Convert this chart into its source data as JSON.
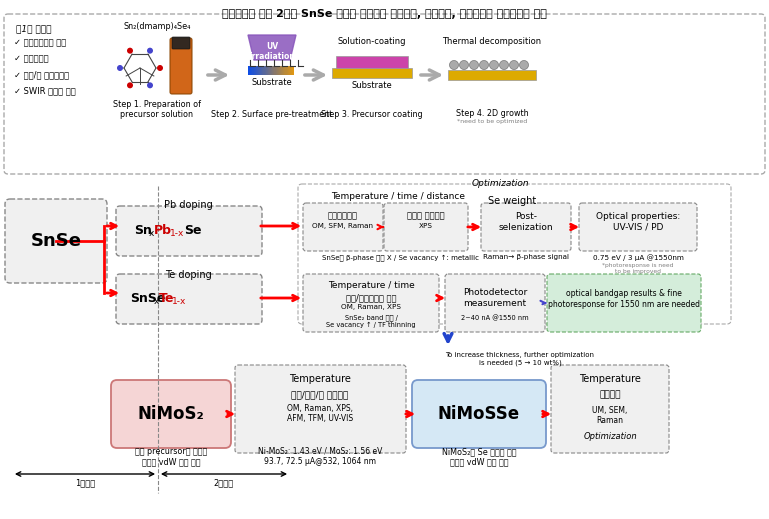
{
  "title": "단일전구체 기반 2차원 SnSe 반도체 층상소재 저온합성, 물성평가, 단위센서의 광전기특성 평가",
  "bg": "#ffffff",
  "bullets": [
    "✓ 최적합성조건 수립",
    "✓ 대면적합성",
    "✓ 산화/열 안전성평가",
    "✓ SWIR 광특성 평가"
  ],
  "step_labels": [
    "Step 1. Preparation of\nprecursor solution",
    "Step 2. Surface pre-treatment",
    "Step 3. Precursor coating",
    "Step 4. 2D growth"
  ],
  "pb_formula_parts": [
    [
      "Sn",
      "bold",
      "black"
    ],
    [
      "x",
      "normal",
      "black"
    ],
    [
      "Pb",
      "bold",
      "#cc0000"
    ],
    [
      "1-x",
      "normal",
      "#cc0000"
    ],
    [
      "Se",
      "bold",
      "black"
    ]
  ],
  "te_formula_parts": [
    [
      "SnSe",
      "bold",
      "black"
    ],
    [
      "x",
      "normal",
      "black"
    ],
    [
      "Te",
      "bold",
      "#cc0000"
    ],
    [
      "1-x",
      "normal",
      "#cc0000"
    ]
  ],
  "optimization_label": "Optimization",
  "pb_doping_label": "Pb doping",
  "te_doping_label": "Te doping",
  "ttd_label": "Temperature / time / distance",
  "tt_label": "Temperature / time",
  "se_weight_label": "Se weight",
  "optical_label": "Optical properties:\nUV-VIS / PD",
  "optical_sub1": "0.75 eV / 3 μA @1550nm",
  "optical_sub2": "*photoresponse is need\nto be improved",
  "struct_label1": "구조특성분석",
  "struct_sub1": "OM, SFM, Raman",
  "chem_label1": "화학적 특성분석",
  "chem_sub1": "XPS",
  "note_pb": "SnSe의 β-phase 관찰 X / Se vacancy ↑: metallic",
  "post_sel": "Post-\nselenization",
  "raman_note": "Raman→ β-phase signal",
  "struct_label2": "구조/화학적특성 분석",
  "struct_sub2": "OM, Raman, XPS",
  "snse2_note": "SnSe₂ band 감소 /\nSe vacancy ↑ / TF thinning",
  "photo_label": "Photodetector\nmeasurement",
  "photo_note": "2~40 nA @1550 nm",
  "green_label": "optical bandgap results & fine\nphotoresponse for 1550 nm are needed",
  "blue_note": "To increase thickness, further optimization\nis needed (5 → 10 wt%)",
  "year1_label": "1차년도",
  "year2_label": "2차년도",
  "nimos2_label": "NiMoS₂",
  "nimosse_label": "NiMoSSe",
  "bot_analysis_title": "Temperature",
  "bot_analysis_body": "구조/화학/광 특성분석",
  "bot_analysis_sub": "OM, Raman, XPS,\nAFM, TFM, UV-VIS",
  "bot_final_title": "Temperature",
  "bot_final_body": "구조분서",
  "bot_final_sub": "UM, SEM,\nRaman",
  "bot_final_opt": "Optimization",
  "nimos2_note": "신규 precursor를 이용한\n삼원계 vdW 소재 합성",
  "bot_mid_note": "Ni-MoS₂: 1.43 eV / MoS₂: 1.56 eV\n93.7, 72.5 μA@532, 1064 nm",
  "nimosse_note": "NiMoS₂의 Se 도핑을 동한\n사원계 vdW 소재 합성",
  "snse_label": "SnSe",
  "bullet_title": "＜1차 년도＞"
}
